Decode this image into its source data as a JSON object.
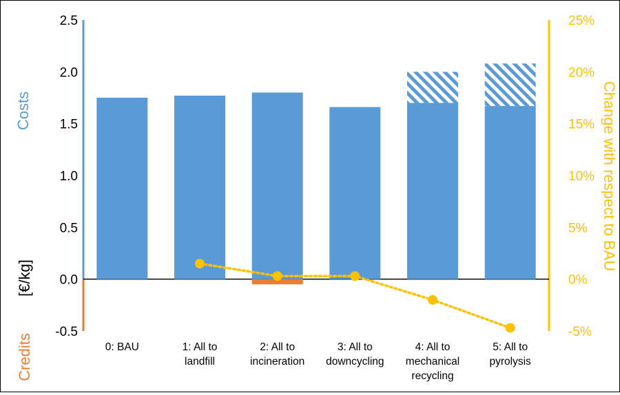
{
  "chart_data": {
    "type": "bar",
    "categories": [
      [
        "0: BAU"
      ],
      [
        "1: All to",
        "landfill"
      ],
      [
        "2: All to",
        "incineration"
      ],
      [
        "3: All to",
        "downcycling"
      ],
      [
        "4: All to",
        "mechanical",
        "recycling"
      ],
      [
        "5: All to",
        "pyrolysis"
      ]
    ],
    "series": [
      {
        "values": [
          1.75,
          1.77,
          1.8,
          1.66,
          1.7,
          1.67
        ],
        "color": "#5b9bd5",
        "style": "solid"
      },
      {
        "values": [
          0,
          0,
          0,
          0,
          0.3,
          0.41
        ],
        "color": "#5b9bd5",
        "style": "hatched",
        "stacked_on": 0
      },
      {
        "values": [
          0,
          0,
          -0.05,
          0,
          0,
          0
        ],
        "color": "#ed7d31",
        "style": "solid"
      },
      {
        "values": [
          null,
          1.5,
          0.3,
          0.3,
          -2.0,
          -4.7
        ],
        "color": "#ffc000",
        "style": "dotted-line-markers",
        "axis": "right"
      }
    ],
    "left_axis": {
      "range": [
        -0.5,
        2.5
      ],
      "ticks": [
        "-0.5",
        "0.0",
        "0.5",
        "1.0",
        "1.5",
        "2.0",
        "2.5"
      ]
    },
    "right_axis": {
      "range": [
        -5,
        25
      ],
      "ticks": [
        "-5%",
        "0%",
        "5%",
        "10%",
        "15%",
        "20%",
        "25%"
      ],
      "color": "#ffc000"
    },
    "labels": {
      "costs": "Costs",
      "unit": "[€/kg]",
      "credits": "Credits",
      "right": "Change with respect to BAU"
    },
    "colors": {
      "costs": "#5b9bd5",
      "credits": "#ed7d31",
      "change": "#ffc000"
    },
    "grid": false
  }
}
